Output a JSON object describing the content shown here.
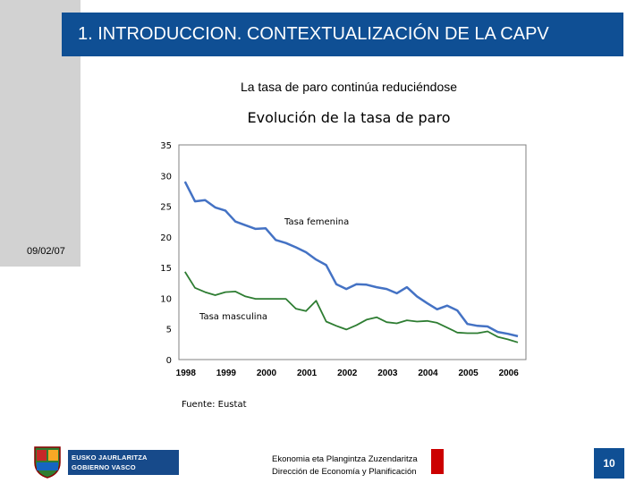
{
  "header": {
    "title": "1. INTRODUCCION. CONTEXTUALIZACIÓN DE LA CAPV"
  },
  "slide": {
    "subtitle": "La tasa de paro continúa reduciéndose",
    "date": "09/02/07",
    "source": "Fuente: Eustat"
  },
  "chart_data": {
    "type": "line",
    "title": "Evolución de la tasa de paro",
    "xlabel": "",
    "ylabel": "",
    "ylim": [
      0,
      35
    ],
    "xlim": [
      1997.85,
      2006.45
    ],
    "yticks": [
      0,
      5,
      10,
      15,
      20,
      25,
      30,
      35
    ],
    "ytick_labels": [
      "0",
      "5",
      "10",
      "15",
      "20",
      "25",
      "30",
      "35"
    ],
    "xticks": [
      1998,
      1999,
      2000,
      2001,
      2002,
      2003,
      2004,
      2005,
      2006
    ],
    "xtick_labels": [
      "1998",
      "1999",
      "2000",
      "2001",
      "2002",
      "2003",
      "2004",
      "2005",
      "2006"
    ],
    "series": [
      {
        "name": "Tasa femenina",
        "color": "#4472c4",
        "x": [
          1998.0,
          1998.25,
          1998.5,
          1998.75,
          1999.0,
          1999.25,
          1999.5,
          1999.75,
          2000.0,
          2000.25,
          2000.5,
          2000.75,
          2001.0,
          2001.25,
          2001.5,
          2001.75,
          2002.0,
          2002.25,
          2002.5,
          2002.75,
          2003.0,
          2003.25,
          2003.5,
          2003.75,
          2004.0,
          2004.25,
          2004.5,
          2004.75,
          2005.0,
          2005.25,
          2005.5,
          2005.75,
          2006.0,
          2006.25
        ],
        "values": [
          29.0,
          25.8,
          26.0,
          24.8,
          24.3,
          22.5,
          21.9,
          21.3,
          21.4,
          19.5,
          19.0,
          18.3,
          17.5,
          16.3,
          15.4,
          12.3,
          11.5,
          12.3,
          12.2,
          11.8,
          11.5,
          10.8,
          11.8,
          10.3,
          9.2,
          8.2,
          8.8,
          8.0,
          5.8,
          5.5,
          5.4,
          4.5,
          4.2,
          3.8
        ]
      },
      {
        "name": "Tasa masculina",
        "color": "#2e7d32",
        "x": [
          1998.0,
          1998.25,
          1998.5,
          1998.75,
          1999.0,
          1999.25,
          1999.5,
          1999.75,
          2000.0,
          2000.25,
          2000.5,
          2000.75,
          2001.0,
          2001.25,
          2001.5,
          2001.75,
          2002.0,
          2002.25,
          2002.5,
          2002.75,
          2003.0,
          2003.25,
          2003.5,
          2003.75,
          2004.0,
          2004.25,
          2004.5,
          2004.75,
          2005.0,
          2005.25,
          2005.5,
          2005.75,
          2006.0,
          2006.25
        ],
        "values": [
          14.3,
          11.7,
          11.0,
          10.5,
          11.0,
          11.1,
          10.3,
          9.9,
          9.9,
          9.9,
          9.9,
          8.3,
          7.9,
          9.6,
          6.2,
          5.5,
          4.9,
          5.6,
          6.5,
          6.9,
          6.1,
          5.9,
          6.4,
          6.2,
          6.3,
          6.0,
          5.2,
          4.4,
          4.3,
          4.3,
          4.6,
          3.7,
          3.3,
          2.8
        ]
      }
    ],
    "annotations": [
      "Tasa femenina",
      "Tasa masculina"
    ]
  },
  "footer": {
    "logo_line1": "EUSKO JAURLARITZA",
    "logo_line2": "GOBIERNO VASCO",
    "dept_eu": "Ekonomia eta Plangintza Zuzendaritza",
    "dept_es": "Dirección de Economía y Planificación",
    "page_number": "10",
    "accent_red": "#cc0000",
    "brand_blue": "#0f4f94"
  }
}
